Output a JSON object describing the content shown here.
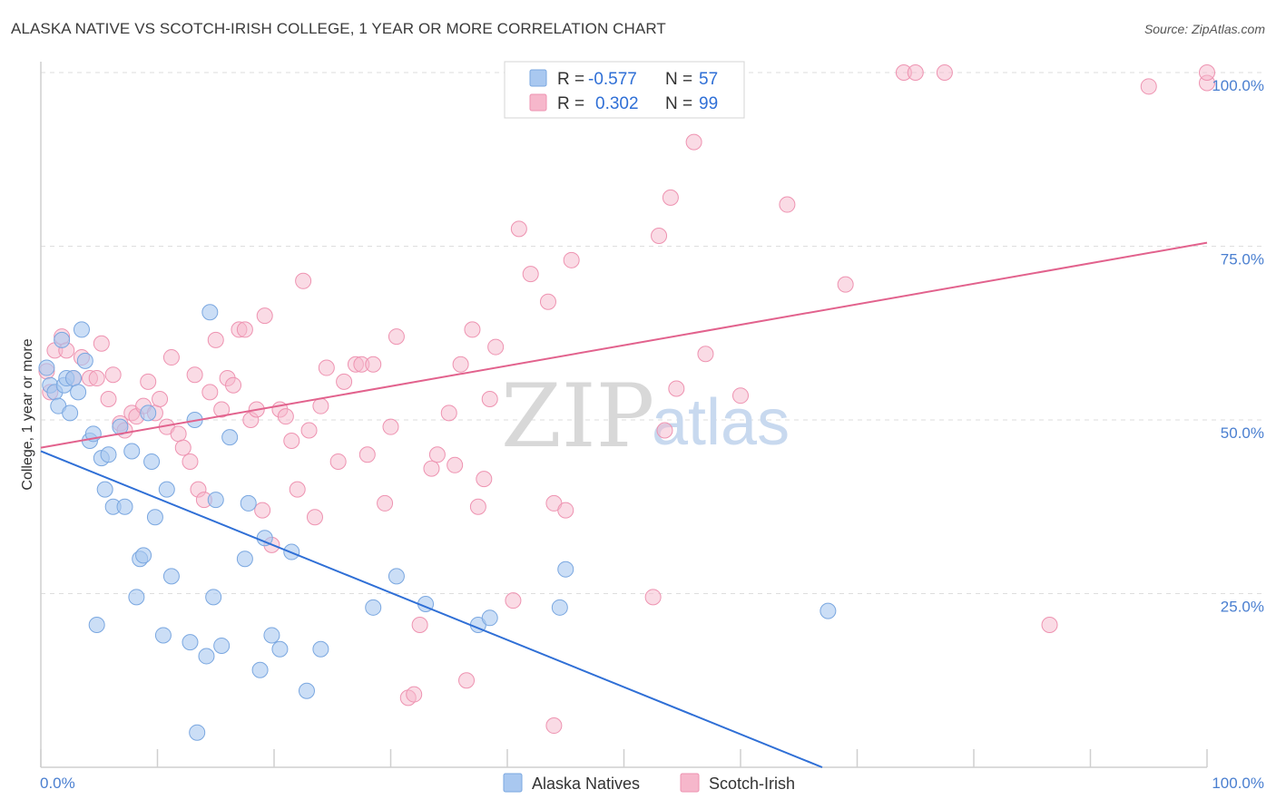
{
  "header": {
    "title": "ALASKA NATIVE VS SCOTCH-IRISH COLLEGE, 1 YEAR OR MORE CORRELATION CHART",
    "source": "Source: ZipAtlas.com"
  },
  "watermark": {
    "zip": "ZIP",
    "atlas": "atlas"
  },
  "legend": {
    "series": [
      {
        "r_label": "R =",
        "r_value": "-0.577",
        "n_label": "N =",
        "n_value": "57"
      },
      {
        "r_label": "R =",
        "r_value": "0.302",
        "n_label": "N =",
        "n_value": "99"
      }
    ]
  },
  "bottom_legend": [
    "Alaska Natives",
    "Scotch-Irish"
  ],
  "colors": {
    "blue_fill": "#a9c8f0",
    "blue_stroke": "#7aa7e0",
    "blue_line": "#2f6fd6",
    "pink_fill": "#f6b7cb",
    "pink_stroke": "#ee93b1",
    "pink_line": "#e2628d",
    "tick_text": "#4a7fd0",
    "grid": "#dedede"
  },
  "chart_data": {
    "type": "scatter",
    "title": "ALASKA NATIVE VS SCOTCH-IRISH COLLEGE, 1 YEAR OR MORE CORRELATION CHART",
    "xlabel": "",
    "ylabel": "College, 1 year or more",
    "xlim": [
      0,
      100
    ],
    "ylim": [
      0,
      100
    ],
    "x_tick_labels": [
      "0.0%",
      "100.0%"
    ],
    "y_tick_labels": [
      "25.0%",
      "50.0%",
      "75.0%",
      "100.0%"
    ],
    "y_ticks": [
      25,
      50,
      75,
      100
    ],
    "grid": true,
    "series": [
      {
        "name": "Alaska Natives",
        "color": "#a9c8f0",
        "trend": {
          "x": [
            0,
            67
          ],
          "y": [
            45.5,
            0
          ]
        },
        "points": [
          [
            0.5,
            57.5
          ],
          [
            0.8,
            55
          ],
          [
            1.2,
            54
          ],
          [
            1.5,
            52
          ],
          [
            1.8,
            61.5
          ],
          [
            2,
            55
          ],
          [
            2.2,
            56
          ],
          [
            2.5,
            51
          ],
          [
            2.8,
            56
          ],
          [
            3.2,
            54
          ],
          [
            3.5,
            63
          ],
          [
            3.8,
            58.5
          ],
          [
            4.2,
            47
          ],
          [
            4.5,
            48
          ],
          [
            4.8,
            20.5
          ],
          [
            5.2,
            44.5
          ],
          [
            5.5,
            40
          ],
          [
            5.8,
            45
          ],
          [
            6.2,
            37.5
          ],
          [
            6.8,
            49
          ],
          [
            7.2,
            37.5
          ],
          [
            7.8,
            45.5
          ],
          [
            8.2,
            24.5
          ],
          [
            8.5,
            30
          ],
          [
            8.8,
            30.5
          ],
          [
            9.2,
            51
          ],
          [
            9.5,
            44
          ],
          [
            9.8,
            36
          ],
          [
            10.5,
            19
          ],
          [
            10.8,
            40
          ],
          [
            11.2,
            27.5
          ],
          [
            12.8,
            18
          ],
          [
            13.2,
            50
          ],
          [
            13.4,
            5
          ],
          [
            14.2,
            16
          ],
          [
            14.8,
            24.5
          ],
          [
            14.5,
            65.5
          ],
          [
            15,
            38.5
          ],
          [
            15.5,
            17.5
          ],
          [
            16.2,
            47.5
          ],
          [
            17.5,
            30
          ],
          [
            17.8,
            38
          ],
          [
            18.8,
            14
          ],
          [
            19.2,
            33
          ],
          [
            19.8,
            19
          ],
          [
            20.5,
            17
          ],
          [
            21.5,
            31
          ],
          [
            22.8,
            11
          ],
          [
            24,
            17
          ],
          [
            28.5,
            23
          ],
          [
            30.5,
            27.5
          ],
          [
            33,
            23.5
          ],
          [
            37.5,
            20.5
          ],
          [
            38.5,
            21.5
          ],
          [
            44.5,
            23
          ],
          [
            45,
            28.5
          ],
          [
            67.5,
            22.5
          ]
        ]
      },
      {
        "name": "Scotch-Irish",
        "color": "#f6b7cb",
        "trend": {
          "x": [
            0,
            100
          ],
          "y": [
            46,
            75.5
          ]
        },
        "points": [
          [
            0.5,
            57
          ],
          [
            0.8,
            54
          ],
          [
            1.2,
            60
          ],
          [
            1.8,
            62
          ],
          [
            2.2,
            60
          ],
          [
            2.8,
            56
          ],
          [
            3.5,
            59
          ],
          [
            4.2,
            56
          ],
          [
            4.8,
            56
          ],
          [
            5.2,
            61
          ],
          [
            5.8,
            53
          ],
          [
            6.2,
            56.5
          ],
          [
            6.8,
            49.5
          ],
          [
            7.2,
            48.5
          ],
          [
            7.8,
            51
          ],
          [
            8.2,
            50.5
          ],
          [
            8.8,
            52
          ],
          [
            9.2,
            55.5
          ],
          [
            9.8,
            51
          ],
          [
            10.2,
            53
          ],
          [
            10.8,
            49
          ],
          [
            11.2,
            59
          ],
          [
            11.8,
            48
          ],
          [
            12.2,
            46
          ],
          [
            12.8,
            44
          ],
          [
            13.2,
            56.5
          ],
          [
            13.5,
            40
          ],
          [
            14,
            38.5
          ],
          [
            14.5,
            54
          ],
          [
            15,
            61.5
          ],
          [
            15.5,
            51.5
          ],
          [
            16,
            56
          ],
          [
            16.5,
            55
          ],
          [
            17,
            63
          ],
          [
            17.5,
            63
          ],
          [
            18,
            50
          ],
          [
            18.5,
            51.5
          ],
          [
            19,
            37
          ],
          [
            19.2,
            65
          ],
          [
            19.8,
            32
          ],
          [
            20.5,
            51.5
          ],
          [
            21,
            50.5
          ],
          [
            21.5,
            47
          ],
          [
            22,
            40
          ],
          [
            22.5,
            70
          ],
          [
            23,
            48.5
          ],
          [
            23.5,
            36
          ],
          [
            24,
            52
          ],
          [
            24.5,
            57.5
          ],
          [
            25.5,
            44
          ],
          [
            26,
            55.5
          ],
          [
            27,
            58
          ],
          [
            27.5,
            58
          ],
          [
            28,
            45
          ],
          [
            28.5,
            58
          ],
          [
            29.5,
            38
          ],
          [
            30,
            49
          ],
          [
            30.5,
            62
          ],
          [
            31.5,
            10
          ],
          [
            32,
            10.5
          ],
          [
            32.5,
            20.5
          ],
          [
            33.5,
            43
          ],
          [
            34,
            45
          ],
          [
            35,
            51
          ],
          [
            35.5,
            43.5
          ],
          [
            36,
            58
          ],
          [
            36.5,
            12.5
          ],
          [
            37,
            63
          ],
          [
            37.5,
            37.5
          ],
          [
            38,
            41.5
          ],
          [
            38.5,
            53
          ],
          [
            39,
            60.5
          ],
          [
            40.5,
            24
          ],
          [
            41,
            77.5
          ],
          [
            41.5,
            100
          ],
          [
            42,
            71
          ],
          [
            44,
            6
          ],
          [
            43.5,
            67
          ],
          [
            44,
            38
          ],
          [
            45,
            37
          ],
          [
            45.5,
            73
          ],
          [
            52,
            100
          ],
          [
            52.5,
            24.5
          ],
          [
            53,
            76.5
          ],
          [
            53.5,
            48.5
          ],
          [
            54,
            82
          ],
          [
            54.5,
            54.5
          ],
          [
            56,
            90
          ],
          [
            57,
            59.5
          ],
          [
            60,
            53.5
          ],
          [
            64,
            81
          ],
          [
            69,
            69.5
          ],
          [
            74,
            100
          ],
          [
            75,
            100
          ],
          [
            77.5,
            100
          ],
          [
            86.5,
            20.5
          ],
          [
            95,
            98
          ],
          [
            100,
            98.5
          ],
          [
            100,
            100
          ]
        ]
      }
    ]
  }
}
